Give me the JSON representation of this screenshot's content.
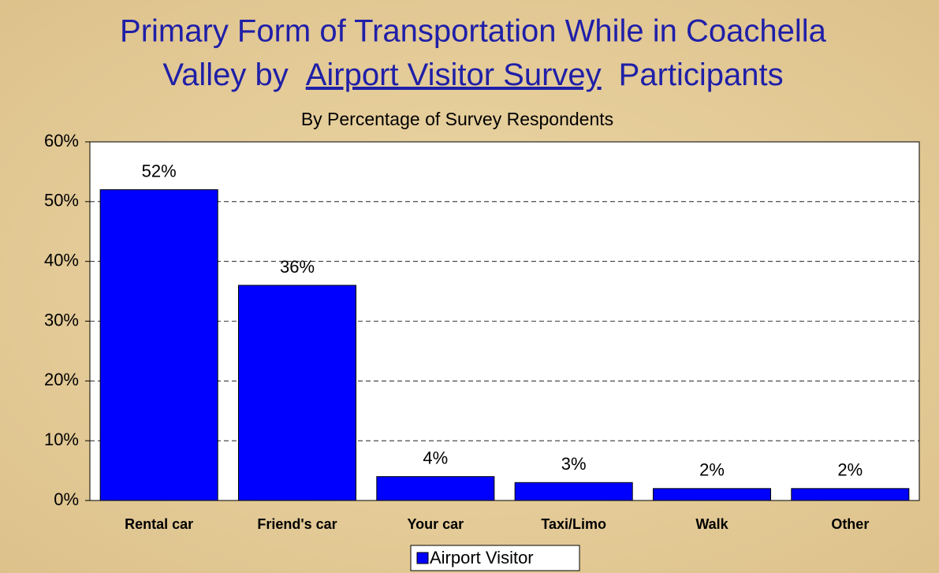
{
  "chart_data": {
    "type": "bar",
    "title": [
      "Primary Form of Transportation While in Coachella",
      "Valley by",
      "Airport Visitor Survey",
      "Participants"
    ],
    "subtitle": "By Percentage of Survey Respondents",
    "categories": [
      "Rental car",
      "Friend's car",
      "Your car",
      "Taxi/Limo",
      "Walk",
      "Other"
    ],
    "series": [
      {
        "name": "Airport Visitor",
        "color": "#0000ff",
        "values": [
          52,
          36,
          4,
          3,
          2,
          2
        ],
        "value_labels": [
          "52%",
          "36%",
          "4%",
          "3%",
          "2%",
          "2%"
        ]
      }
    ],
    "ylim": [
      0,
      60
    ],
    "yticks": [
      {
        "value": 0,
        "label": "0%"
      },
      {
        "value": 10,
        "label": "10%"
      },
      {
        "value": 20,
        "label": "20%"
      },
      {
        "value": 30,
        "label": "30%"
      },
      {
        "value": 40,
        "label": "40%"
      },
      {
        "value": 50,
        "label": "50%"
      },
      {
        "value": 60,
        "label": "60%"
      }
    ],
    "grid": true,
    "legend": "bottom"
  }
}
